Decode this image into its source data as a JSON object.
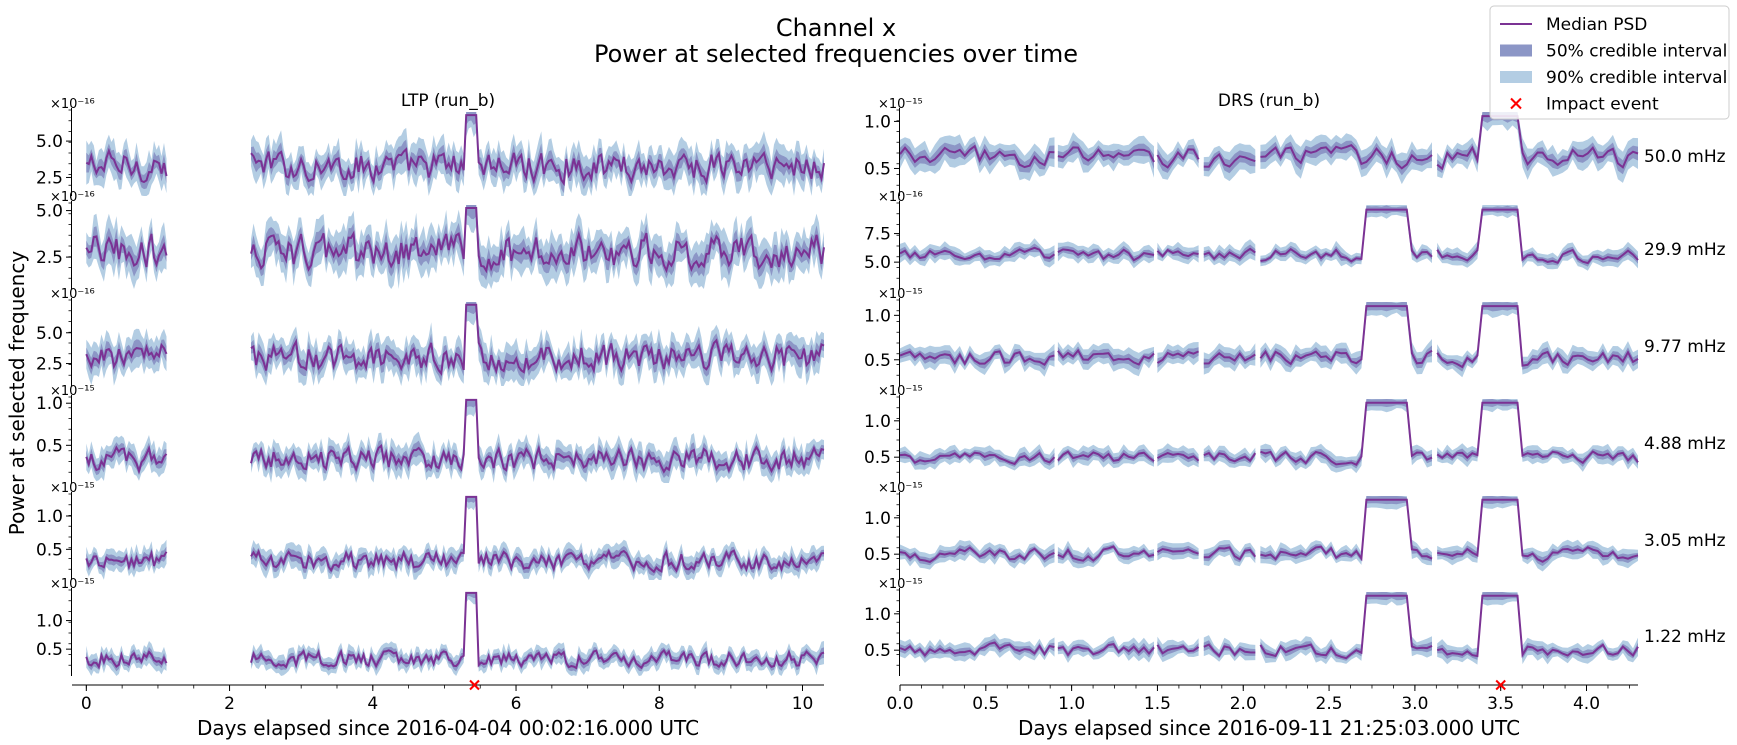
{
  "title_line1": "Channel x",
  "title_line2": "Power at selected frequencies over time",
  "ylabel": "Power at selected frequency",
  "legend": [
    {
      "label": "Median PSD",
      "kind": "line",
      "color": "#7b3294"
    },
    {
      "label": "50% credible interval",
      "kind": "patch",
      "color": "#8c96c6"
    },
    {
      "label": "90% credible interval",
      "kind": "patch",
      "color": "#b3cde3"
    },
    {
      "label": "Impact event",
      "kind": "marker",
      "color": "#ff0000"
    }
  ],
  "colors": {
    "median": "#7b3294",
    "ci50": "#8c96c6",
    "ci90": "#b3cde3",
    "impact": "#ff0000"
  },
  "chart_data": [
    {
      "type": "line",
      "panel_title": "LTP (run_b)",
      "xlabel": "Days elapsed since 2016-04-04 00:02:16.000 UTC",
      "xlim": [
        -0.2,
        10.3
      ],
      "xticks": [
        0,
        2,
        4,
        6,
        8,
        10
      ],
      "xtick_labels": [
        "0",
        "2",
        "4",
        "6",
        "8",
        "10"
      ],
      "segments": [
        [
          0.0,
          1.12
        ],
        [
          2.3,
          10.3
        ]
      ],
      "impact_x": 5.42,
      "impact_points": [
        5.32,
        5.4
      ],
      "rows": [
        {
          "frequency": "50.0 mHz",
          "exponent": "×10⁻¹⁶",
          "ylim": [
            1.5,
            7.0
          ],
          "yticks": [
            2.5,
            5.0
          ],
          "ytick_labels": [
            "2.5",
            "5.0"
          ],
          "baseline": 3.3,
          "amp": 0.9
        },
        {
          "frequency": "29.9 mHz",
          "exponent": "×10⁻¹⁶",
          "ylim": [
            1.0,
            5.3
          ],
          "yticks": [
            2.5,
            5.0
          ],
          "ytick_labels": [
            "2.5",
            "5.0"
          ],
          "baseline": 2.8,
          "amp": 0.8
        },
        {
          "frequency": "9.77 mHz",
          "exponent": "×10⁻¹⁶",
          "ylim": [
            1.0,
            7.5
          ],
          "yticks": [
            2.5,
            5.0
          ],
          "ytick_labels": [
            "2.5",
            "5.0"
          ],
          "baseline": 3.0,
          "amp": 1.0
        },
        {
          "frequency": "4.88 mHz",
          "exponent": "×10⁻¹⁵",
          "ylim": [
            0.1,
            1.05
          ],
          "yticks": [
            0.5,
            1.0
          ],
          "ytick_labels": [
            "0.5",
            "1.0"
          ],
          "baseline": 0.33,
          "amp": 0.12
        },
        {
          "frequency": "3.05 mHz",
          "exponent": "×10⁻¹⁵",
          "ylim": [
            0.1,
            1.3
          ],
          "yticks": [
            0.5,
            1.0
          ],
          "ytick_labels": [
            "0.5",
            "1.0"
          ],
          "baseline": 0.33,
          "amp": 0.12
        },
        {
          "frequency": "1.22 mHz",
          "exponent": "×10⁻¹⁵",
          "ylim": [
            0.1,
            1.5
          ],
          "yticks": [
            0.5,
            1.0
          ],
          "ytick_labels": [
            "0.5",
            "1.0"
          ],
          "baseline": 0.33,
          "amp": 0.12
        }
      ]
    },
    {
      "type": "line",
      "panel_title": "DRS (run_b)",
      "xlabel": "Days elapsed since 2016-09-11 21:25:03.000 UTC",
      "xlim": [
        0.0,
        4.3
      ],
      "xticks": [
        0.0,
        0.5,
        1.0,
        1.5,
        2.0,
        2.5,
        3.0,
        3.5,
        4.0
      ],
      "xtick_labels": [
        "0.0",
        "0.5",
        "1.0",
        "1.5",
        "2.0",
        "2.5",
        "3.0",
        "3.5",
        "4.0"
      ],
      "segments": [
        [
          0.0,
          0.9
        ],
        [
          0.92,
          1.48
        ],
        [
          1.5,
          1.74
        ],
        [
          1.77,
          2.07
        ],
        [
          2.1,
          3.1
        ],
        [
          3.13,
          4.3
        ]
      ],
      "impact_x": 3.5,
      "spike_points": [
        2.84,
        3.5
      ],
      "rows": [
        {
          "frequency": "50.0 mHz",
          "exponent": "×10⁻¹⁵",
          "ylim": [
            0.25,
            1.1
          ],
          "yticks": [
            0.5,
            1.0
          ],
          "ytick_labels": [
            "0.5",
            "1.0"
          ],
          "baseline": 0.62,
          "amp": 0.1
        },
        {
          "frequency": "29.9 mHz",
          "exponent": "×10⁻¹⁶",
          "ylim": [
            3.0,
            10.0
          ],
          "yticks": [
            5.0,
            7.5
          ],
          "ytick_labels": [
            "5.0",
            "7.5"
          ],
          "baseline": 5.6,
          "amp": 0.5
        },
        {
          "frequency": "9.77 mHz",
          "exponent": "×10⁻¹⁵",
          "ylim": [
            0.25,
            1.15
          ],
          "yticks": [
            0.5,
            1.0
          ],
          "ytick_labels": [
            "0.5",
            "1.0"
          ],
          "baseline": 0.52,
          "amp": 0.08
        },
        {
          "frequency": "4.88 mHz",
          "exponent": "×10⁻¹⁵",
          "ylim": [
            0.2,
            1.3
          ],
          "yticks": [
            0.5,
            1.0
          ],
          "ytick_labels": [
            "0.5",
            "1.0"
          ],
          "baseline": 0.5,
          "amp": 0.08
        },
        {
          "frequency": "3.05 mHz",
          "exponent": "×10⁻¹⁵",
          "ylim": [
            0.2,
            1.3
          ],
          "yticks": [
            0.5,
            1.0
          ],
          "ytick_labels": [
            "0.5",
            "1.0"
          ],
          "baseline": 0.5,
          "amp": 0.08
        },
        {
          "frequency": "1.22 mHz",
          "exponent": "×10⁻¹⁵",
          "ylim": [
            0.2,
            1.3
          ],
          "yticks": [
            0.5,
            1.0
          ],
          "ytick_labels": [
            "0.5",
            "1.0"
          ],
          "baseline": 0.5,
          "amp": 0.08
        }
      ]
    }
  ]
}
